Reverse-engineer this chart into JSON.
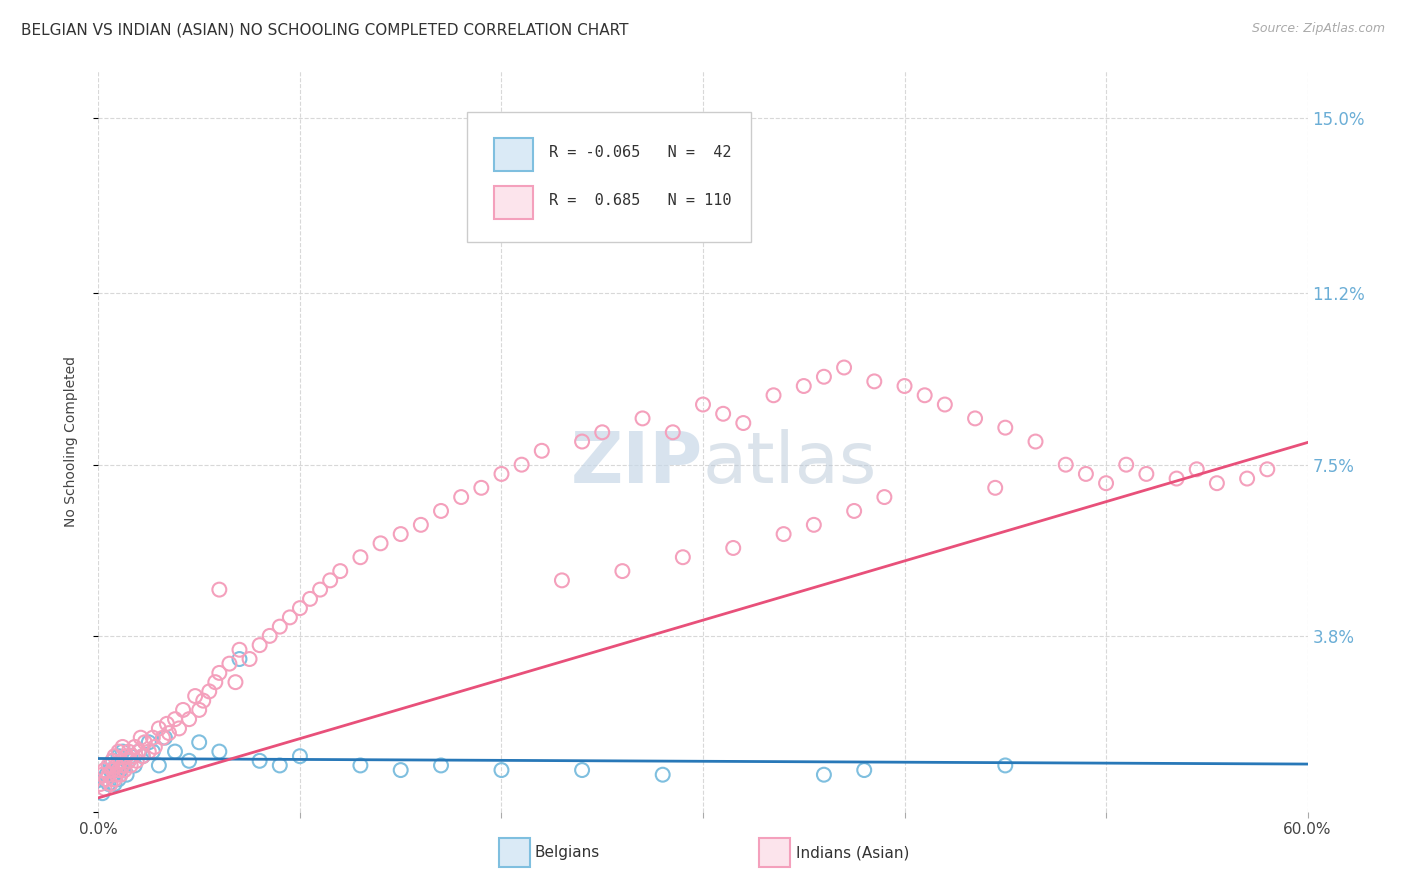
{
  "title": "BELGIAN VS INDIAN (ASIAN) NO SCHOOLING COMPLETED CORRELATION CHART",
  "source": "Source: ZipAtlas.com",
  "ylabel": "No Schooling Completed",
  "xlim": [
    0.0,
    0.6
  ],
  "ylim": [
    0.0,
    0.16
  ],
  "ytick_positions": [
    0.0,
    0.038,
    0.075,
    0.112,
    0.15
  ],
  "ytick_labels": [
    "",
    "3.8%",
    "7.5%",
    "11.2%",
    "15.0%"
  ],
  "xtick_positions": [
    0.0,
    0.1,
    0.2,
    0.3,
    0.4,
    0.5,
    0.6
  ],
  "xtick_labels": [
    "0.0%",
    "",
    "",
    "",
    "",
    "",
    "60.0%"
  ],
  "belgian_R": -0.065,
  "belgian_N": 42,
  "indian_R": 0.685,
  "indian_N": 110,
  "belgian_color": "#7fbfdf",
  "indian_color": "#f4a0bc",
  "belgian_line_color": "#2878b8",
  "indian_line_color": "#e8507a",
  "background_color": "#ffffff",
  "grid_color": "#d8d8d8",
  "grid_style": "--",
  "belgian_line_intercept": 0.0115,
  "belgian_line_slope": -0.002,
  "indian_line_intercept": 0.003,
  "indian_line_slope": 0.128,
  "watermark_text": "ZIPatlas",
  "watermark_color": "#dce8f0",
  "legend_R1": "R = -0.065",
  "legend_N1": "N =  42",
  "legend_R2": "R =  0.685",
  "legend_N2": "N = 110",
  "belg_x": [
    0.002,
    0.003,
    0.004,
    0.005,
    0.006,
    0.006,
    0.007,
    0.007,
    0.008,
    0.009,
    0.01,
    0.01,
    0.011,
    0.012,
    0.013,
    0.014,
    0.015,
    0.016,
    0.018,
    0.02,
    0.022,
    0.025,
    0.027,
    0.03,
    0.033,
    0.038,
    0.045,
    0.05,
    0.06,
    0.07,
    0.08,
    0.09,
    0.1,
    0.13,
    0.15,
    0.17,
    0.2,
    0.24,
    0.28,
    0.36,
    0.38,
    0.45
  ],
  "belg_y": [
    0.004,
    0.007,
    0.008,
    0.006,
    0.009,
    0.01,
    0.008,
    0.011,
    0.006,
    0.009,
    0.007,
    0.012,
    0.009,
    0.013,
    0.01,
    0.008,
    0.011,
    0.012,
    0.01,
    0.013,
    0.012,
    0.015,
    0.013,
    0.01,
    0.016,
    0.013,
    0.011,
    0.015,
    0.013,
    0.033,
    0.011,
    0.01,
    0.012,
    0.01,
    0.009,
    0.01,
    0.009,
    0.009,
    0.008,
    0.008,
    0.009,
    0.01
  ],
  "ind_x": [
    0.001,
    0.002,
    0.003,
    0.003,
    0.004,
    0.005,
    0.005,
    0.006,
    0.007,
    0.007,
    0.008,
    0.008,
    0.009,
    0.009,
    0.01,
    0.01,
    0.011,
    0.011,
    0.012,
    0.012,
    0.013,
    0.014,
    0.015,
    0.015,
    0.016,
    0.017,
    0.018,
    0.019,
    0.02,
    0.021,
    0.022,
    0.023,
    0.025,
    0.027,
    0.028,
    0.03,
    0.032,
    0.034,
    0.035,
    0.038,
    0.04,
    0.042,
    0.045,
    0.048,
    0.05,
    0.052,
    0.055,
    0.058,
    0.06,
    0.065,
    0.068,
    0.07,
    0.075,
    0.08,
    0.085,
    0.09,
    0.095,
    0.1,
    0.105,
    0.11,
    0.115,
    0.12,
    0.13,
    0.14,
    0.15,
    0.16,
    0.17,
    0.18,
    0.19,
    0.2,
    0.21,
    0.22,
    0.24,
    0.25,
    0.27,
    0.285,
    0.3,
    0.31,
    0.32,
    0.335,
    0.35,
    0.36,
    0.37,
    0.385,
    0.4,
    0.41,
    0.42,
    0.435,
    0.45,
    0.465,
    0.48,
    0.49,
    0.5,
    0.51,
    0.52,
    0.535,
    0.545,
    0.555,
    0.57,
    0.58,
    0.06,
    0.23,
    0.26,
    0.29,
    0.315,
    0.34,
    0.355,
    0.375,
    0.39,
    0.445
  ],
  "ind_y": [
    0.006,
    0.008,
    0.005,
    0.009,
    0.007,
    0.008,
    0.01,
    0.006,
    0.009,
    0.011,
    0.007,
    0.012,
    0.008,
    0.01,
    0.009,
    0.013,
    0.008,
    0.011,
    0.01,
    0.014,
    0.009,
    0.012,
    0.011,
    0.013,
    0.01,
    0.012,
    0.014,
    0.011,
    0.013,
    0.016,
    0.012,
    0.015,
    0.013,
    0.016,
    0.014,
    0.018,
    0.016,
    0.019,
    0.017,
    0.02,
    0.018,
    0.022,
    0.02,
    0.025,
    0.022,
    0.024,
    0.026,
    0.028,
    0.03,
    0.032,
    0.028,
    0.035,
    0.033,
    0.036,
    0.038,
    0.04,
    0.042,
    0.044,
    0.046,
    0.048,
    0.05,
    0.052,
    0.055,
    0.058,
    0.06,
    0.062,
    0.065,
    0.068,
    0.07,
    0.073,
    0.075,
    0.078,
    0.08,
    0.082,
    0.085,
    0.082,
    0.088,
    0.086,
    0.084,
    0.09,
    0.092,
    0.094,
    0.096,
    0.093,
    0.092,
    0.09,
    0.088,
    0.085,
    0.083,
    0.08,
    0.075,
    0.073,
    0.071,
    0.075,
    0.073,
    0.072,
    0.074,
    0.071,
    0.072,
    0.074,
    0.048,
    0.05,
    0.052,
    0.055,
    0.057,
    0.06,
    0.062,
    0.065,
    0.068,
    0.07
  ]
}
